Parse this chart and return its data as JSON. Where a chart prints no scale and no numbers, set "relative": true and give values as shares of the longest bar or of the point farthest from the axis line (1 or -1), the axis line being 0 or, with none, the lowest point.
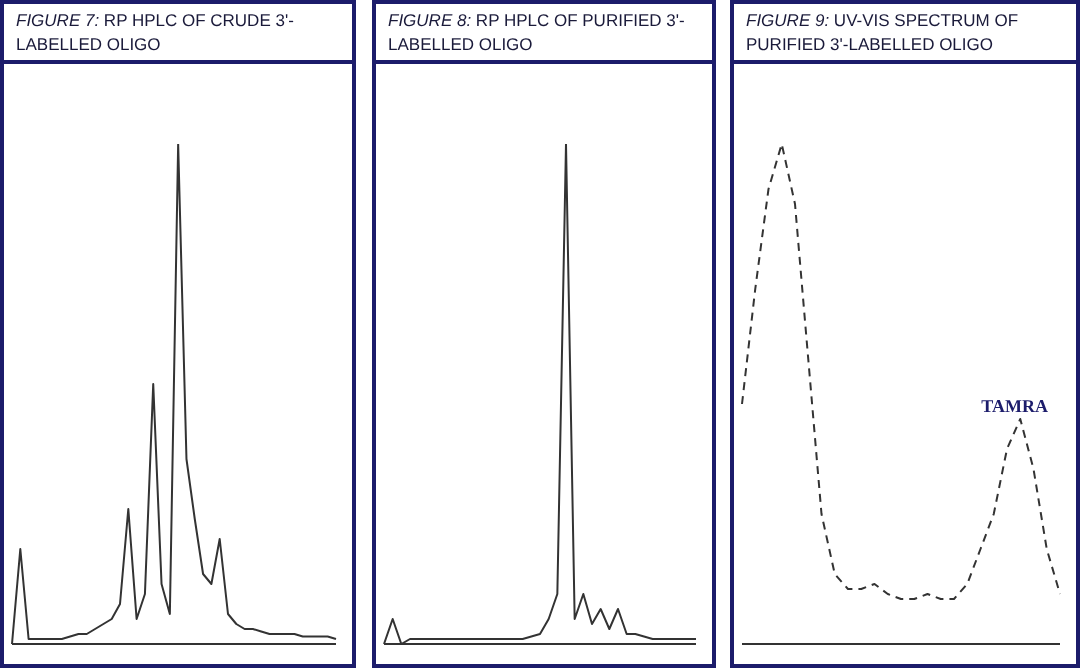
{
  "chart_data": [
    {
      "type": "line",
      "title": "FIGURE 7: RP HPLC OF CRUDE 3'-LABELLED OLIGO",
      "relative": true,
      "tick_labels": false,
      "line_style": "solid",
      "categories": [
        null,
        null,
        null,
        null,
        null,
        null,
        null,
        null,
        null,
        null,
        null,
        null,
        null,
        null,
        null,
        null,
        null,
        null,
        null,
        null,
        null,
        null,
        null,
        null,
        null,
        null,
        null,
        null,
        null,
        null,
        null,
        null,
        null,
        null,
        null,
        null,
        null,
        null,
        null,
        null
      ],
      "series": [
        {
          "color": "#333333",
          "values": [
            0,
            0.19,
            0.01,
            0.01,
            0.01,
            0.01,
            0.01,
            0.015,
            0.02,
            0.02,
            0.03,
            0.04,
            0.05,
            0.08,
            0.27,
            0.05,
            0.1,
            0.52,
            0.12,
            0.06,
            1.0,
            0.37,
            0.25,
            0.14,
            0.12,
            0.21,
            0.06,
            0.04,
            0.03,
            0.03,
            0.025,
            0.02,
            0.02,
            0.02,
            0.02,
            0.015,
            0.015,
            0.015,
            0.015,
            0.01
          ]
        }
      ]
    },
    {
      "type": "line",
      "title": "FIGURE 8: RP HPLC OF PURIFIED 3'-LABELLED OLIGO",
      "relative": true,
      "tick_labels": false,
      "line_style": "solid",
      "categories": [
        null,
        null,
        null,
        null,
        null,
        null,
        null,
        null,
        null,
        null,
        null,
        null,
        null,
        null,
        null,
        null,
        null,
        null,
        null,
        null,
        null,
        null,
        null,
        null,
        null,
        null,
        null,
        null,
        null,
        null,
        null,
        null,
        null,
        null,
        null,
        null,
        null
      ],
      "series": [
        {
          "color": "#333333",
          "values": [
            0,
            0.05,
            0,
            0.01,
            0.01,
            0.01,
            0.01,
            0.01,
            0.01,
            0.01,
            0.01,
            0.01,
            0.01,
            0.01,
            0.01,
            0.01,
            0.01,
            0.015,
            0.02,
            0.05,
            0.1,
            1.0,
            0.05,
            0.1,
            0.04,
            0.07,
            0.03,
            0.07,
            0.02,
            0.02,
            0.015,
            0.01,
            0.01,
            0.01,
            0.01,
            0.01,
            0.01
          ]
        }
      ]
    },
    {
      "type": "line",
      "title": "FIGURE 9: UV-VIS SPECTRUM OF PURIFIED 3'-LABELLED OLIGO",
      "relative": true,
      "tick_labels": false,
      "line_style": "dashed",
      "annotations": [
        "TAMRA"
      ],
      "categories": [
        null,
        null,
        null,
        null,
        null,
        null,
        null,
        null,
        null,
        null,
        null,
        null,
        null,
        null,
        null,
        null,
        null,
        null,
        null,
        null,
        null,
        null,
        null,
        null,
        null
      ],
      "series": [
        {
          "color": "#333333",
          "values": [
            0.48,
            0.71,
            0.91,
            1.0,
            0.88,
            0.57,
            0.26,
            0.14,
            0.11,
            0.11,
            0.12,
            0.1,
            0.09,
            0.09,
            0.1,
            0.09,
            0.09,
            0.12,
            0.19,
            0.26,
            0.39,
            0.45,
            0.35,
            0.19,
            0.1
          ]
        }
      ]
    }
  ]
}
